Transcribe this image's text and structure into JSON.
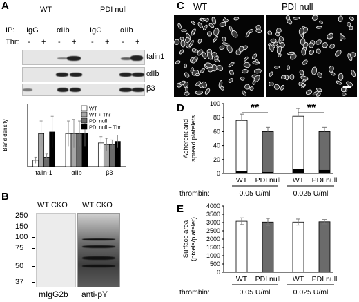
{
  "panels": {
    "a": "A",
    "b": "B",
    "c": "C",
    "d": "D",
    "e": "E"
  },
  "panel_a": {
    "groups": [
      "WT",
      "PDI null"
    ],
    "ip_label": "IP:",
    "ip_columns": [
      "IgG",
      "αIIb",
      "IgG",
      "αIIb"
    ],
    "thr_label": "Thr:",
    "thr_signs": [
      "-",
      "+",
      "-",
      "+",
      "-",
      "+",
      "-",
      "+"
    ],
    "blot_labels": [
      "talin1",
      "αIIb",
      "β3"
    ]
  },
  "panel_b": {
    "header_left": "WT CKO",
    "header_right": "WT CKO",
    "markers": [
      "250",
      "150",
      "100",
      "75",
      "50",
      "37"
    ],
    "caption_left": "mIgG2b",
    "caption_right": "anti-pY"
  },
  "panel_c": {
    "labels": [
      "WT",
      "PDI null"
    ]
  },
  "colors": {
    "wt": "#ffffff",
    "wt_thr": "#a6a6a6",
    "pdi": "#6b6b6b",
    "pdi_thr": "#000000",
    "error": "#777777"
  },
  "chart_data": [
    {
      "id": "A-density",
      "type": "bar",
      "ylabel": "Band density",
      "ylim": [
        0,
        20
      ],
      "categories": [
        "talin-1",
        "αIIb",
        "β3"
      ],
      "series": [
        {
          "name": "WT",
          "values": [
            2,
            10.5,
            7.5
          ],
          "errors": [
            1,
            4,
            2
          ]
        },
        {
          "name": "WT + Thr",
          "values": [
            10.5,
            10.5,
            7
          ],
          "errors": [
            4,
            4.5,
            2
          ]
        },
        {
          "name": "PDI null",
          "values": [
            3,
            10.5,
            7
          ],
          "errors": [
            1,
            4,
            1.5
          ]
        },
        {
          "name": "PDI null + Thr",
          "values": [
            11,
            10.5,
            8
          ],
          "errors": [
            5,
            4,
            2
          ]
        }
      ]
    },
    {
      "id": "D",
      "type": "bar",
      "ylabel_lines": [
        "Adherent and",
        "spread platelets"
      ],
      "ylim": [
        0,
        100
      ],
      "yticks": [
        0,
        20,
        40,
        60,
        80,
        100
      ],
      "categories": [
        "WT",
        "PDI null",
        "WT",
        "PDI null"
      ],
      "groups": [
        "0.05 U/ml",
        "0.025 U/ml"
      ],
      "condition_label": "thrombin:",
      "series": [
        {
          "name": "spread",
          "values": [
            76,
            60,
            82,
            60
          ],
          "errors": [
            9,
            6,
            11,
            6
          ]
        },
        {
          "name": "adherent",
          "values": [
            3,
            2,
            6,
            5
          ]
        }
      ],
      "significance": [
        "**",
        "**"
      ]
    },
    {
      "id": "E",
      "type": "bar",
      "ylabel_lines": [
        "Surface area",
        "(pixels/platelet)"
      ],
      "ylim": [
        0,
        4000
      ],
      "yticks": [
        0,
        500,
        1000,
        1500,
        2000,
        2500,
        3000,
        3500,
        4000
      ],
      "categories": [
        "WT",
        "PDI null",
        "WT",
        "PDI null"
      ],
      "groups": [
        "0.05 U/ml",
        "0.025 U/ml"
      ],
      "condition_label": "thrombin:",
      "values": [
        3080,
        3030,
        3030,
        3050
      ],
      "errors": [
        200,
        220,
        180,
        130
      ]
    }
  ]
}
